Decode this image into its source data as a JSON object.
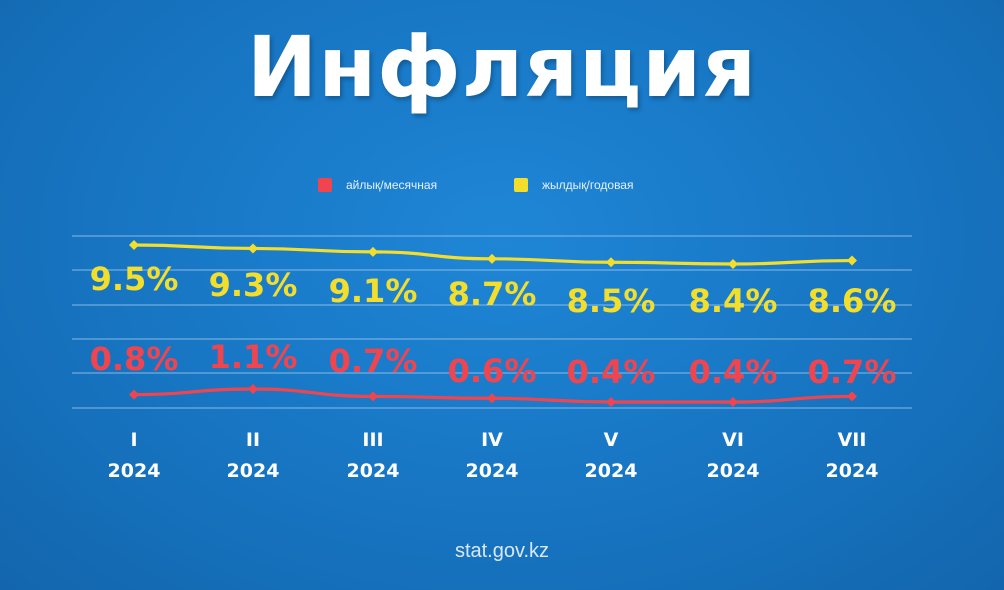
{
  "title": "Инфляция",
  "footer": "stat.gov.kz",
  "colors": {
    "monthly": "#f0454f",
    "annual": "#f4de2c",
    "background": "#1878c6",
    "grid": "#8fc0e8"
  },
  "chart_data": {
    "type": "line",
    "categories": [
      [
        "I",
        "2024"
      ],
      [
        "II",
        "2024"
      ],
      [
        "III",
        "2024"
      ],
      [
        "IV",
        "2024"
      ],
      [
        "V",
        "2024"
      ],
      [
        "VI",
        "2024"
      ],
      [
        "VII",
        "2024"
      ]
    ],
    "series": [
      {
        "name": "жылдық/годовая",
        "color": "#f4de2c",
        "values": [
          9.5,
          9.3,
          9.1,
          8.7,
          8.5,
          8.4,
          8.6
        ],
        "labels": [
          "9.5%",
          "9.3%",
          "9.1%",
          "8.7%",
          "8.5%",
          "8.4%",
          "8.6%"
        ]
      },
      {
        "name": "айлық/месячная",
        "color": "#f0454f",
        "values": [
          0.8,
          1.1,
          0.7,
          0.6,
          0.4,
          0.4,
          0.7
        ],
        "labels": [
          "0.8%",
          "1.1%",
          "0.7%",
          "0.6%",
          "0.4%",
          "0.4%",
          "0.7%"
        ]
      }
    ],
    "legend": [
      {
        "label": "айлық/месячная",
        "color": "#f0454f"
      },
      {
        "label": "жылдық/годовая",
        "color": "#f4de2c"
      }
    ],
    "legend_position": "top-center",
    "grid": true
  }
}
